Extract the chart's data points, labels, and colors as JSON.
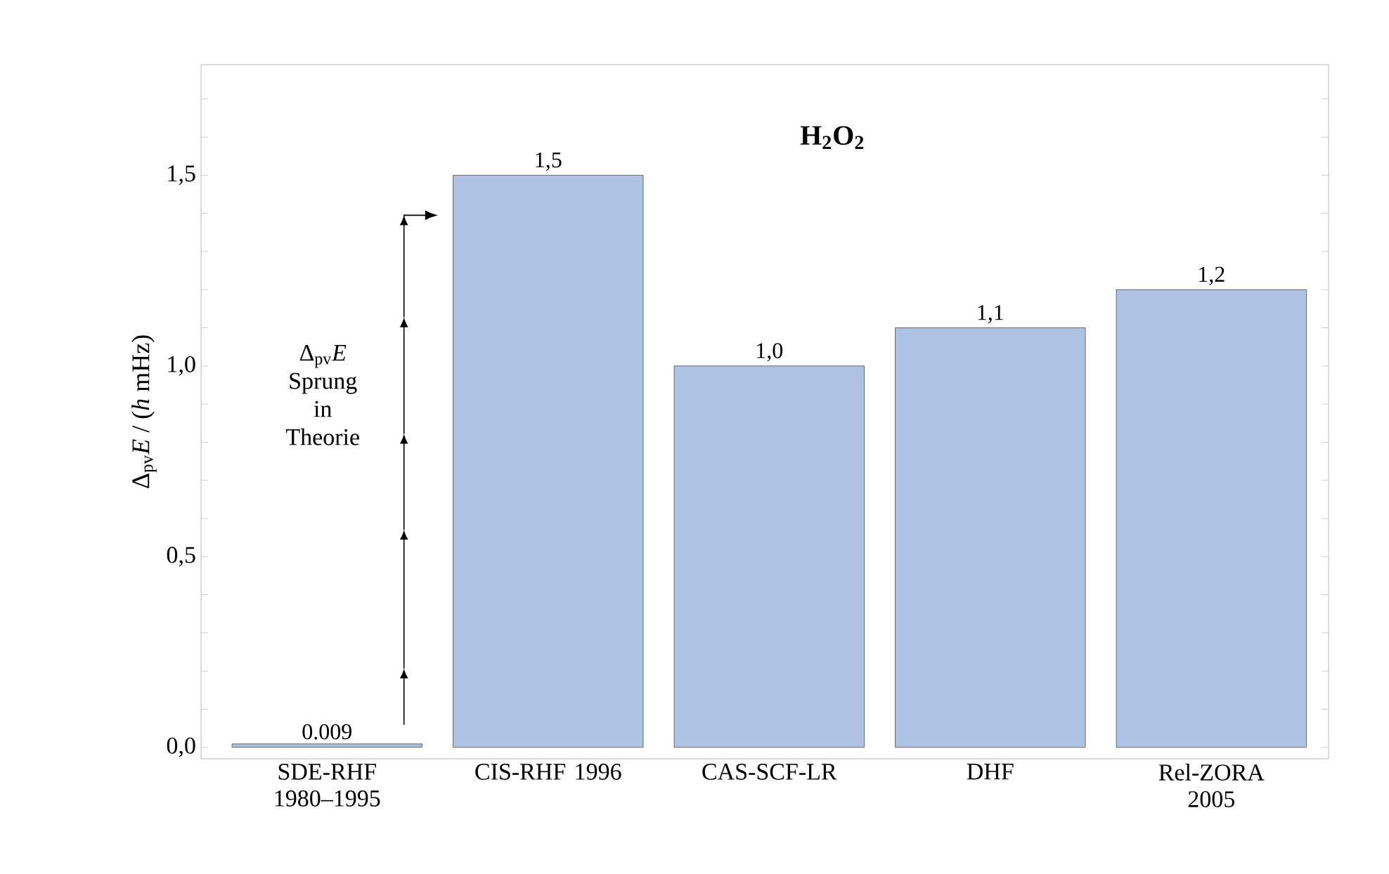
{
  "chart_data": {
    "type": "bar",
    "title": "H$_{2}$O$_{2}$",
    "ylabel": "Δ$_{pv}$*E* / (*h* mHz)",
    "categories": [
      "SDE-RHF 1980–1995",
      "CIS-RHF 1996",
      "CAS-SCF-LR",
      "DHF",
      "Rel-ZORA 2005"
    ],
    "values": [
      0.009,
      1.5,
      1.0,
      1.1,
      1.2
    ],
    "value_labels": [
      "0.009",
      "1,5",
      "1,0",
      "1,1",
      "1,2"
    ],
    "color": "#aec2e4",
    "ylim": [
      -0.03,
      1.79
    ],
    "yticks": [
      {
        "value": 0,
        "label": "0,0"
      },
      {
        "value": 0.1,
        "label": null
      },
      {
        "value": 0.2,
        "label": null
      },
      {
        "value": 0.3,
        "label": null
      },
      {
        "value": 0.4,
        "label": null
      },
      {
        "value": 0.5,
        "label": "0,5"
      },
      {
        "value": 0.6,
        "label": null
      },
      {
        "value": 0.7,
        "label": null
      },
      {
        "value": 0.8,
        "label": null
      },
      {
        "value": 0.9,
        "label": null
      },
      {
        "value": 1.0,
        "label": "1,0"
      },
      {
        "value": 1.1,
        "label": null
      },
      {
        "value": 1.2,
        "label": null
      },
      {
        "value": 1.3,
        "label": null
      },
      {
        "value": 1.4,
        "label": null
      },
      {
        "value": 1.5,
        "label": "1,5"
      },
      {
        "value": 1.6,
        "label": null
      },
      {
        "value": 1.7,
        "label": null
      }
    ],
    "annotations": [
      "Δ$_{pv}$*E* Sprung in Theorie"
    ],
    "grid": false
  }
}
